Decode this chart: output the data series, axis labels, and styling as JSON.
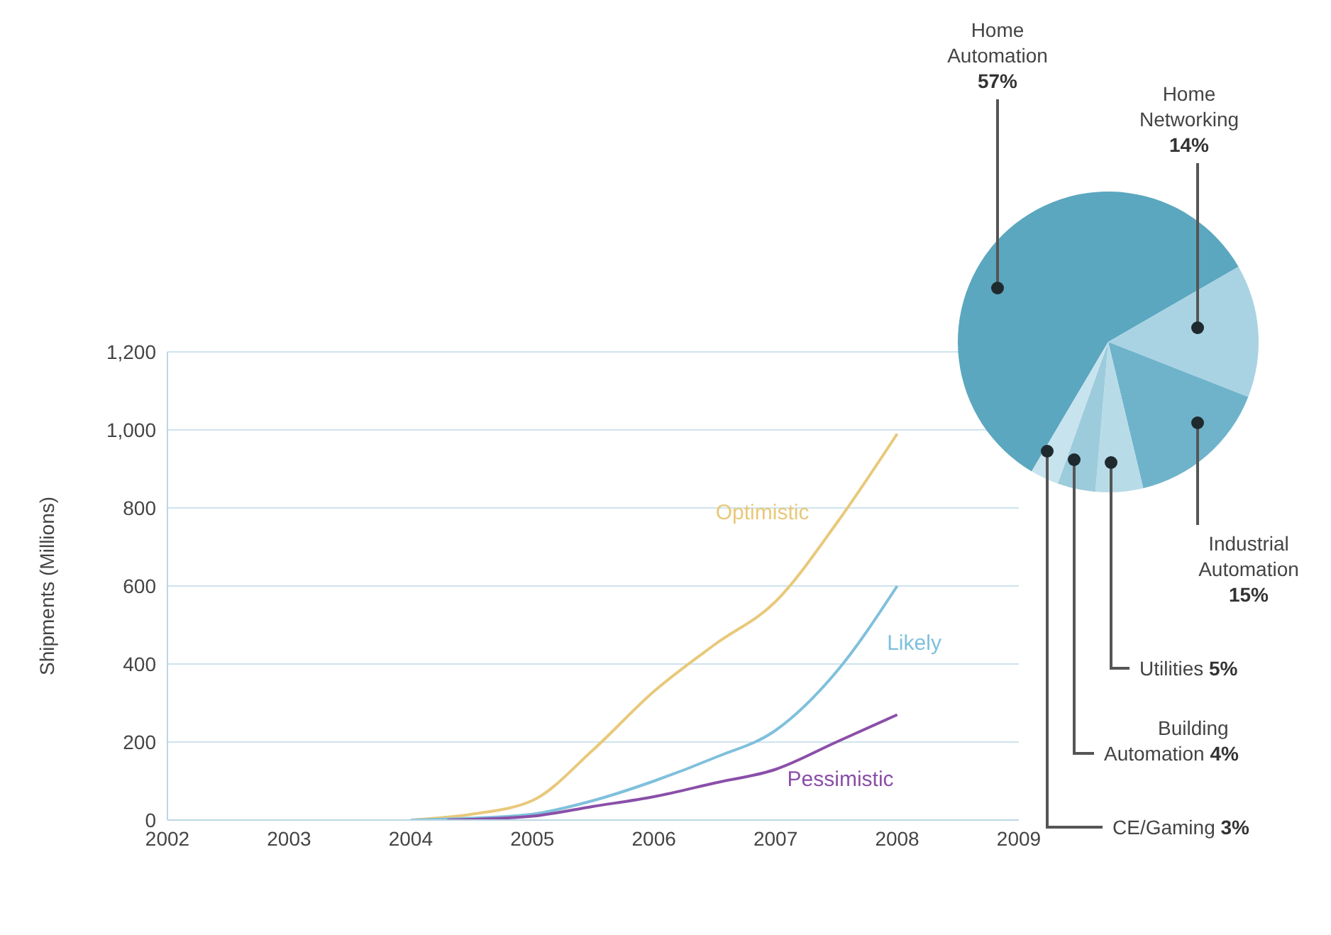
{
  "chart_data": [
    {
      "type": "line",
      "ylabel": "Shipments (Millions)",
      "xlim": [
        2002,
        2009
      ],
      "xticks": [
        2002,
        2003,
        2004,
        2005,
        2006,
        2007,
        2008,
        2009
      ],
      "ylim": [
        0,
        1200
      ],
      "yticks": [
        0,
        {
          "value": 200,
          "label": "200"
        },
        {
          "value": 400,
          "label": "400"
        },
        {
          "value": 600,
          "label": "600"
        },
        {
          "value": 800,
          "label": "800"
        },
        {
          "value": 1000,
          "label": "1,000"
        },
        {
          "value": 1200,
          "label": "1,200"
        }
      ],
      "grid": "y",
      "marker": "none",
      "line_style": "solid",
      "series": [
        {
          "name": "Optimistic",
          "color": "#e8c97a",
          "x": [
            2004,
            2004.5,
            2005,
            2005.5,
            2006,
            2006.5,
            2007,
            2007.5,
            2008
          ],
          "values": [
            0,
            15,
            50,
            180,
            330,
            450,
            560,
            760,
            990
          ]
        },
        {
          "name": "Likely",
          "color": "#7fc0dc",
          "x": [
            2004,
            2004.5,
            2005,
            2005.5,
            2006,
            2006.5,
            2007,
            2007.5,
            2008
          ],
          "values": [
            0,
            5,
            15,
            50,
            100,
            160,
            230,
            380,
            600
          ]
        },
        {
          "name": "Pessimistic",
          "color": "#8a4fa8",
          "x": [
            2004.3,
            2005,
            2005.5,
            2006,
            2006.5,
            2007,
            2007.5,
            2008
          ],
          "values": [
            0,
            10,
            35,
            60,
            95,
            130,
            200,
            270
          ]
        }
      ]
    },
    {
      "type": "pie",
      "categories": [
        "Home Automation",
        "Home Networking",
        "Industrial Automation",
        "Utilities",
        "Building Automation",
        "CE/Gaming"
      ],
      "values": [
        57,
        14,
        15,
        5,
        4,
        3
      ],
      "value_labels": [
        "57%",
        "14%",
        "15%",
        "5%",
        "4%",
        "3%"
      ],
      "colors": [
        "#5ba7bf",
        "#a9d3e3",
        "#6fb3cb",
        "#b8dbe8",
        "#9ccbdc",
        "#c7e3ee"
      ]
    }
  ]
}
